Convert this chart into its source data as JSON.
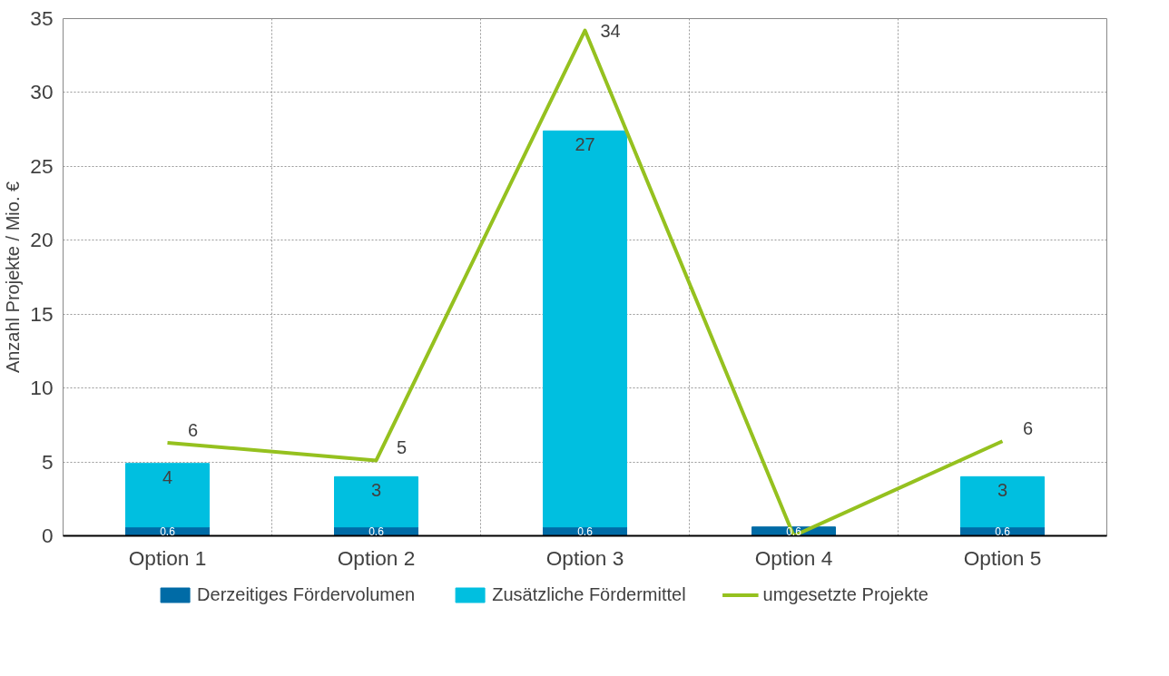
{
  "chart_data": {
    "type": "bar",
    "stacked": true,
    "ylabel": "Anzahl Projekte / Mio. €",
    "categories": [
      "Option 1",
      "Option 2",
      "Option 3",
      "Option 4",
      "Option 5"
    ],
    "series": [
      {
        "name": "Derzeitiges Fördervolumen",
        "color": "#006ba6",
        "values": [
          0.6,
          0.6,
          0.6,
          0.6,
          0.6
        ],
        "value_labels": [
          "0.6",
          "0.6",
          "0.6",
          "0.6",
          "0.6"
        ]
      },
      {
        "name": "Zusätzliche Fördermittel",
        "color": "#00bfe0",
        "values": [
          4.3,
          3.4,
          26.8,
          null,
          3.4
        ],
        "value_labels": [
          "4",
          "3",
          "27",
          null,
          "3"
        ]
      },
      {
        "name": "umgesetzte Projekte",
        "type": "line",
        "color": "#95c11f",
        "values": [
          6.3,
          5.1,
          34.2,
          0.0,
          6.4
        ],
        "value_labels": [
          "6",
          "5",
          "34",
          null,
          "6"
        ]
      }
    ],
    "ylim": [
      0,
      35
    ],
    "yticks": [
      0,
      5,
      10,
      15,
      20,
      25,
      30,
      35
    ],
    "grid": true,
    "legend": "bottom"
  }
}
